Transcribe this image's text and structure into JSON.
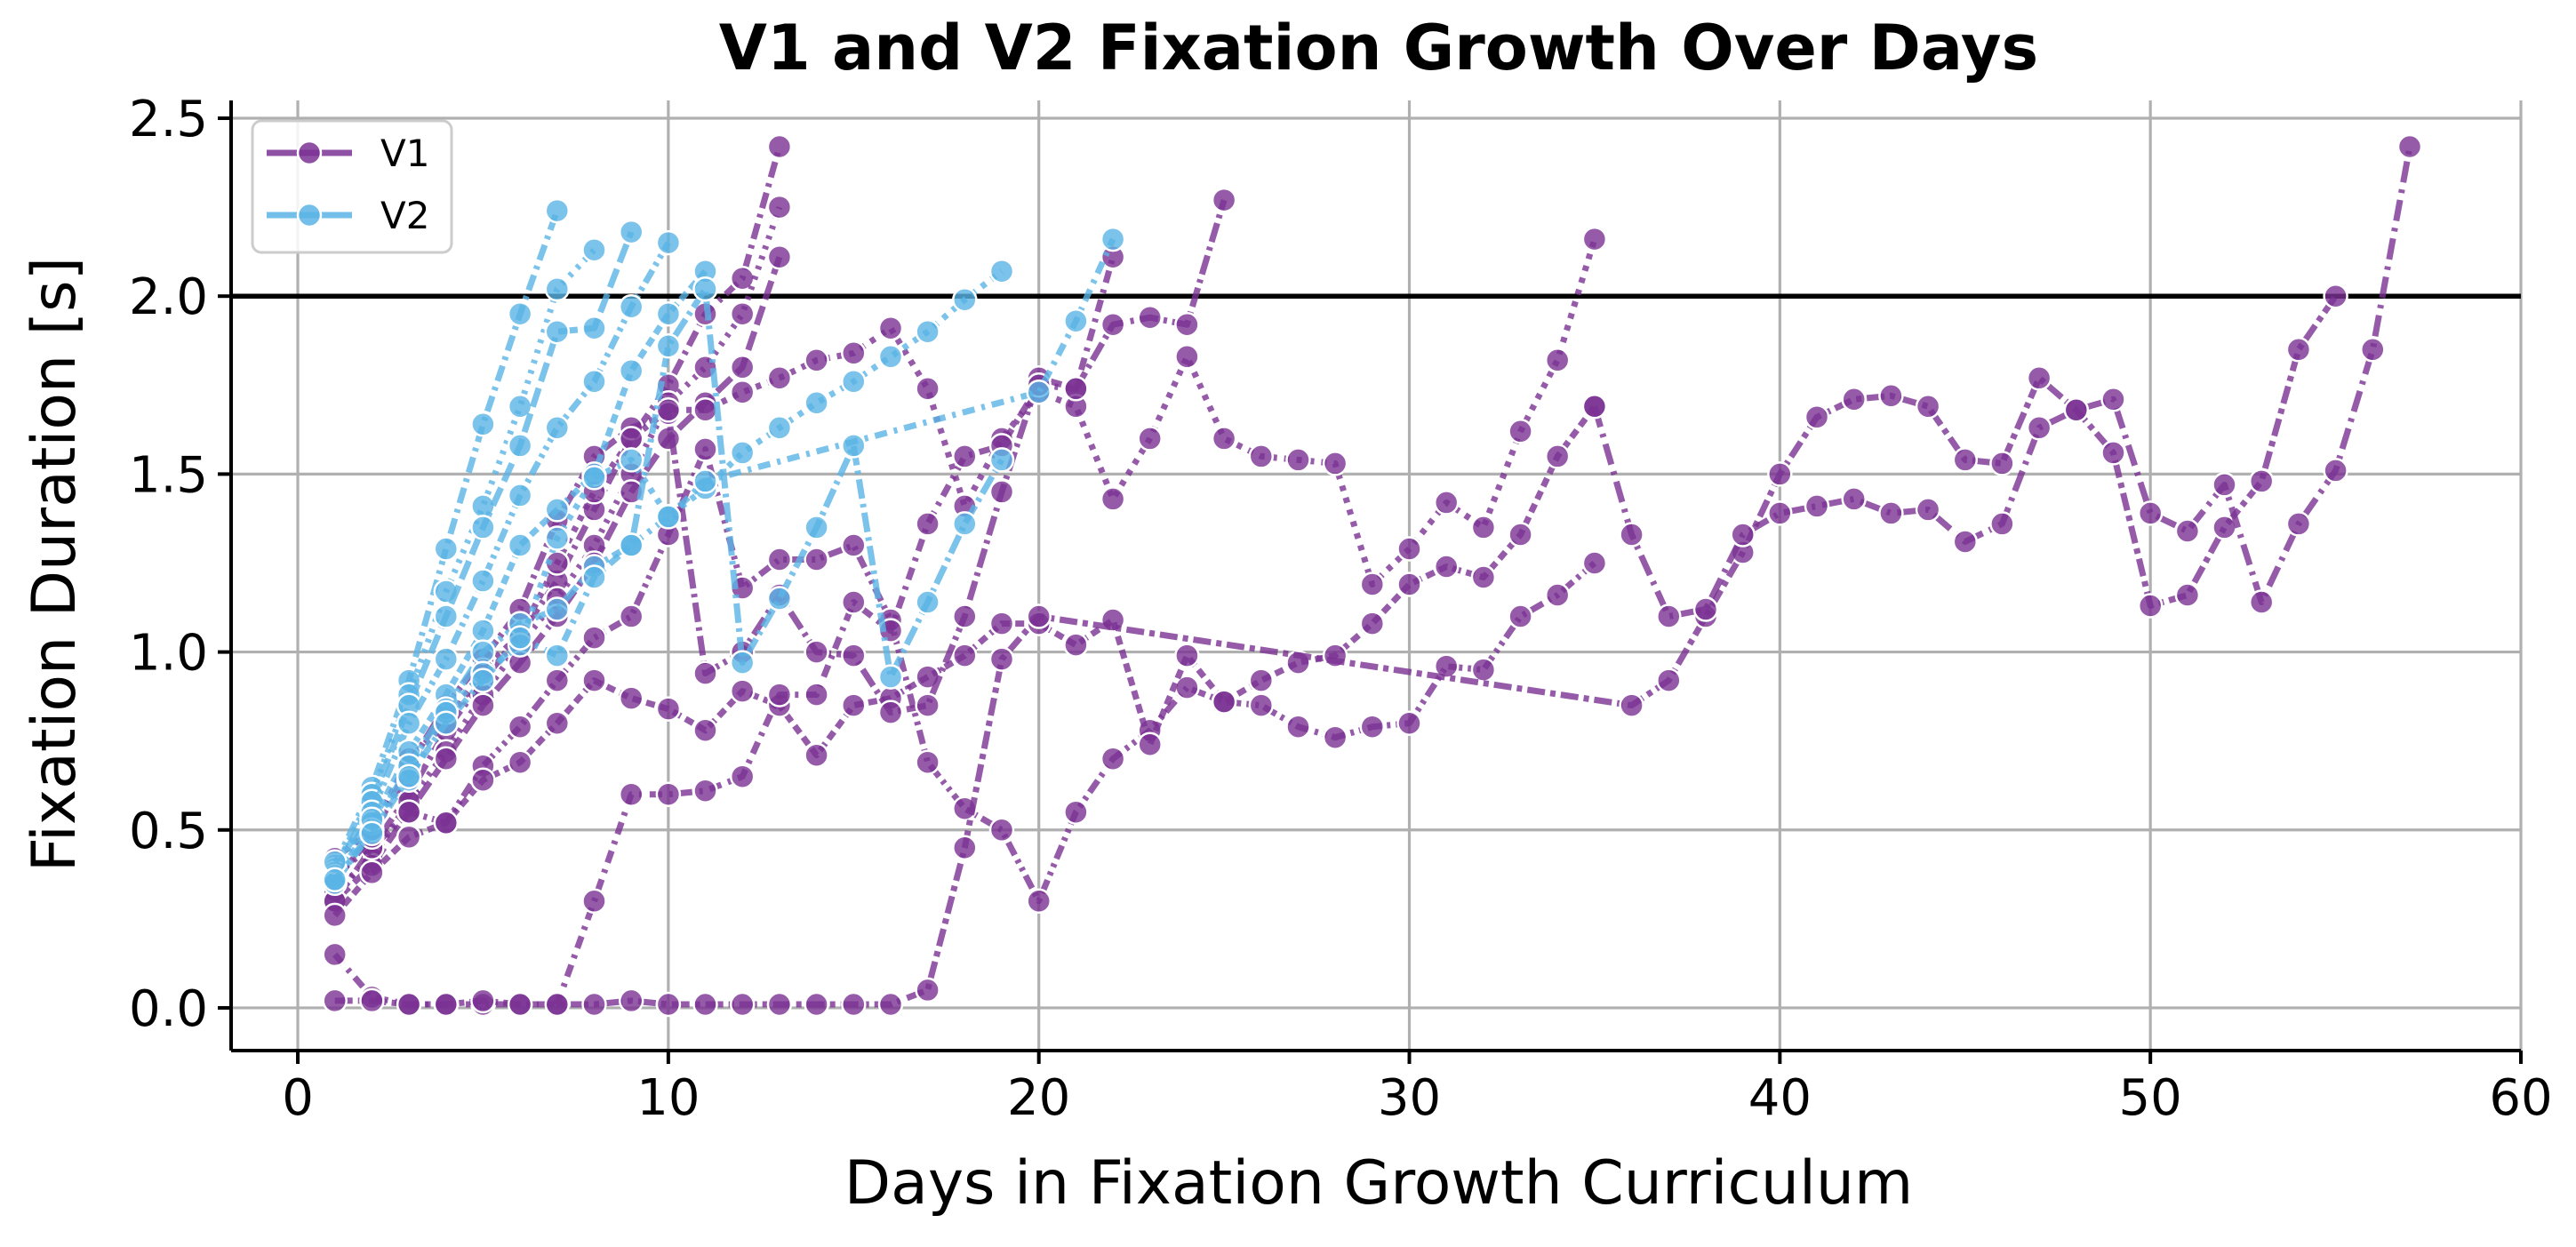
{
  "chart_data": {
    "type": "line",
    "title": "V1 and V2 Fixation Growth Over Days",
    "xlabel": "Days in Fixation Growth Curriculum",
    "ylabel": "Fixation Duration [s]",
    "xlim": [
      -1.8,
      60
    ],
    "ylim": [
      -0.12,
      2.55
    ],
    "xticks": [
      0,
      10,
      20,
      30,
      40,
      50,
      60
    ],
    "yticks": [
      0.0,
      0.5,
      1.0,
      1.5,
      2.0,
      2.5
    ],
    "xtick_labels": [
      "0",
      "10",
      "20",
      "30",
      "40",
      "50",
      "60"
    ],
    "ytick_labels": [
      "0.0",
      "0.5",
      "1.0",
      "1.5",
      "2.0",
      "2.5"
    ],
    "grid": true,
    "reference_line": {
      "y": 2.0,
      "color": "#000000"
    },
    "legend": {
      "position": "top-left",
      "entries": [
        {
          "label": "V1",
          "color": "#7b3294"
        },
        {
          "label": "V2",
          "color": "#5ab4e5"
        }
      ]
    },
    "series": [
      {
        "group": "V1",
        "color": "#7b3294",
        "x": [
          1,
          2,
          3,
          4,
          5,
          6,
          7,
          8,
          9,
          10,
          11,
          12,
          13
        ],
        "y": [
          0.38,
          0.45,
          0.6,
          0.78,
          0.92,
          1.05,
          1.2,
          1.4,
          1.6,
          1.75,
          1.95,
          2.05,
          2.42
        ]
      },
      {
        "group": "V1",
        "color": "#7b3294",
        "x": [
          1,
          2,
          3,
          4,
          5,
          6,
          7,
          8,
          9,
          10,
          11,
          12,
          13
        ],
        "y": [
          0.33,
          0.42,
          0.58,
          0.72,
          0.88,
          1.02,
          1.15,
          1.3,
          1.5,
          1.7,
          1.8,
          1.95,
          2.25
        ]
      },
      {
        "group": "V1",
        "color": "#7b3294",
        "x": [
          1,
          2,
          3,
          4,
          5,
          6,
          7,
          8,
          9,
          10,
          11,
          12,
          13
        ],
        "y": [
          0.3,
          0.4,
          0.55,
          0.7,
          0.85,
          0.97,
          1.1,
          1.25,
          1.45,
          1.6,
          1.7,
          1.8,
          2.11
        ]
      },
      {
        "group": "V1",
        "color": "#7b3294",
        "x": [
          1,
          2,
          3,
          4,
          5,
          6,
          7,
          8,
          9,
          10,
          11,
          12,
          13,
          14,
          15,
          16,
          17,
          18,
          19,
          20,
          21,
          22,
          23,
          24,
          25,
          26,
          27,
          28,
          29,
          30,
          31,
          32,
          33,
          34,
          35
        ],
        "y": [
          0.3,
          0.45,
          0.55,
          0.52,
          0.68,
          0.79,
          0.92,
          1.04,
          1.1,
          1.33,
          1.57,
          1.18,
          1.26,
          1.26,
          1.3,
          1.09,
          0.69,
          0.56,
          0.5,
          0.3,
          0.55,
          0.7,
          0.78,
          0.9,
          0.86,
          0.85,
          0.79,
          0.76,
          0.79,
          0.8,
          0.96,
          0.95,
          1.1,
          1.16,
          1.25
        ]
      },
      {
        "group": "V1",
        "color": "#7b3294",
        "x": [
          1,
          2,
          3,
          4,
          5,
          6,
          7,
          8,
          9,
          10,
          11,
          12,
          13,
          14,
          15,
          16,
          17,
          18,
          19,
          20,
          21,
          22,
          23,
          24,
          25,
          26,
          27,
          28,
          29,
          30,
          31,
          32,
          33,
          34,
          35
        ],
        "y": [
          0.26,
          0.38,
          0.48,
          0.52,
          0.64,
          0.69,
          0.8,
          0.92,
          0.87,
          0.84,
          0.78,
          0.89,
          0.85,
          0.71,
          0.85,
          0.87,
          0.93,
          0.99,
          1.08,
          1.08,
          1.02,
          1.09,
          0.74,
          0.99,
          0.86,
          0.92,
          0.97,
          0.99,
          1.08,
          1.19,
          1.24,
          1.21,
          1.33,
          1.55,
          1.69
        ]
      },
      {
        "group": "V1",
        "color": "#7b3294",
        "x": [
          1,
          2,
          3,
          4,
          5,
          6,
          7,
          8,
          9,
          10,
          11,
          12,
          13,
          14,
          15,
          16,
          17,
          18,
          19,
          20,
          21,
          22,
          23,
          24,
          25
        ],
        "y": [
          0.36,
          0.48,
          0.68,
          0.85,
          0.98,
          1.12,
          1.37,
          1.55,
          1.63,
          1.67,
          0.94,
          1.0,
          1.16,
          1.0,
          0.99,
          0.83,
          0.85,
          1.1,
          1.45,
          1.77,
          1.74,
          1.92,
          1.94,
          1.92,
          2.27
        ]
      },
      {
        "group": "V1",
        "color": "#7b3294",
        "x": [
          1,
          2,
          3,
          4,
          5,
          6,
          7,
          8,
          9,
          10,
          11,
          12,
          13,
          14,
          15,
          16,
          17,
          18,
          19,
          20,
          21,
          22,
          23,
          24,
          25,
          26,
          27,
          28,
          29,
          30,
          31,
          32,
          33,
          34,
          35
        ],
        "y": [
          0.42,
          0.5,
          0.7,
          0.8,
          0.95,
          1.05,
          1.25,
          1.45,
          1.6,
          1.68,
          1.68,
          1.73,
          1.77,
          1.82,
          1.84,
          1.91,
          1.74,
          1.41,
          1.6,
          1.73,
          1.69,
          1.43,
          1.6,
          1.83,
          1.6,
          1.55,
          1.54,
          1.53,
          1.19,
          1.29,
          1.42,
          1.35,
          1.62,
          1.82,
          2.16
        ]
      },
      {
        "group": "V1",
        "color": "#7b3294",
        "x": [
          1,
          2,
          3,
          4,
          5,
          6,
          7,
          8,
          9,
          10,
          11,
          12,
          13,
          14,
          15,
          16,
          17,
          18,
          19,
          20,
          21,
          22,
          23,
          24,
          25,
          26,
          27,
          28,
          29,
          30,
          31,
          32,
          33,
          34,
          35,
          36,
          37,
          38,
          39,
          40,
          41,
          42,
          43,
          44,
          45,
          46,
          47,
          48,
          49,
          50,
          51,
          52,
          53,
          54,
          55
        ],
        "y": [
          0.15,
          0.03,
          0.01,
          0.01,
          0.01,
          0.01,
          0.01,
          0.3,
          0.6,
          0.6,
          0.61,
          0.65,
          0.88,
          0.88,
          1.14,
          1.06,
          1.36,
          1.55,
          1.58,
          1.75,
          1.74,
          2.11,
          null,
          null,
          null,
          null,
          null,
          null,
          null,
          null,
          null,
          null,
          null,
          null,
          null,
          null,
          null,
          null,
          null,
          null,
          null,
          null,
          null,
          null,
          null,
          null,
          null,
          null,
          null,
          null,
          null,
          null,
          null,
          null,
          null
        ]
      },
      {
        "group": "V1",
        "color": "#7b3294",
        "x": [
          1,
          2,
          3,
          4,
          5,
          6,
          7,
          8,
          9,
          10,
          11,
          12,
          13,
          14,
          15,
          16,
          17,
          18,
          19,
          20,
          21,
          22,
          23,
          24,
          25,
          26,
          27,
          28,
          29,
          30,
          31,
          32,
          33,
          34,
          35,
          36,
          37,
          38,
          39,
          40,
          41,
          42,
          43,
          44,
          45,
          46,
          47,
          48,
          49,
          50,
          51,
          52,
          53,
          54,
          55,
          56,
          57
        ],
        "y": [
          0.02,
          0.02,
          0.01,
          0.01,
          0.02,
          0.01,
          0.01,
          0.01,
          0.02,
          0.01,
          0.01,
          0.01,
          0.01,
          0.01,
          0.01,
          0.01,
          0.05,
          0.45,
          0.98,
          1.1,
          null,
          null,
          null,
          null,
          null,
          null,
          null,
          null,
          null,
          null,
          null,
          null,
          null,
          null,
          null,
          0.85,
          0.92,
          1.1,
          1.28,
          1.5,
          1.66,
          1.71,
          1.72,
          1.69,
          1.54,
          1.53,
          1.77,
          1.68,
          1.56,
          1.13,
          1.16,
          1.35,
          1.48,
          1.85,
          2.0,
          null,
          null
        ]
      },
      {
        "group": "V1",
        "color": "#7b3294",
        "x": [
          35,
          36,
          37,
          38,
          39,
          40,
          41,
          42,
          43,
          44,
          45,
          46,
          47,
          48,
          49,
          50,
          51,
          52,
          53,
          54,
          55,
          56,
          57
        ],
        "y": [
          1.69,
          1.33,
          1.1,
          1.12,
          1.33,
          1.39,
          1.41,
          1.43,
          1.39,
          1.4,
          1.31,
          1.36,
          1.63,
          1.68,
          1.71,
          1.39,
          1.34,
          1.47,
          1.14,
          1.36,
          1.51,
          1.85,
          2.42
        ]
      },
      {
        "group": "V2",
        "color": "#5ab4e5",
        "x": [
          1,
          2,
          3,
          4,
          5,
          6,
          7
        ],
        "y": [
          0.4,
          0.62,
          0.92,
          1.29,
          1.64,
          1.95,
          2.24
        ]
      },
      {
        "group": "V2",
        "color": "#5ab4e5",
        "x": [
          1,
          2,
          3,
          4,
          5,
          6,
          7,
          8
        ],
        "y": [
          0.39,
          0.6,
          0.88,
          1.17,
          1.41,
          1.69,
          2.02,
          2.13
        ]
      },
      {
        "group": "V2",
        "color": "#5ab4e5",
        "x": [
          1,
          2,
          3,
          4,
          5,
          6,
          7,
          8,
          9
        ],
        "y": [
          0.38,
          0.58,
          0.85,
          1.1,
          1.35,
          1.58,
          1.9,
          1.91,
          2.18
        ]
      },
      {
        "group": "V2",
        "color": "#5ab4e5",
        "x": [
          1,
          2,
          3,
          4,
          5,
          6,
          7,
          8,
          9,
          10
        ],
        "y": [
          0.37,
          0.55,
          0.8,
          0.98,
          1.2,
          1.44,
          1.63,
          1.76,
          1.97,
          2.15
        ]
      },
      {
        "group": "V2",
        "color": "#5ab4e5",
        "x": [
          1,
          2,
          3,
          4,
          5,
          6,
          7,
          8,
          9,
          10,
          11
        ],
        "y": [
          0.36,
          0.52,
          0.72,
          0.88,
          1.06,
          1.3,
          1.4,
          1.5,
          1.79,
          1.95,
          2.07
        ]
      },
      {
        "group": "V2",
        "color": "#5ab4e5",
        "x": [
          1,
          2,
          3,
          4,
          5,
          6,
          7,
          8,
          9,
          10,
          11,
          12,
          13,
          14,
          15,
          16,
          17,
          18,
          19
        ],
        "y": [
          0.35,
          0.5,
          0.68,
          0.84,
          1.0,
          1.08,
          1.12,
          1.24,
          1.3,
          1.86,
          2.02,
          0.97,
          1.15,
          1.35,
          1.58,
          0.93,
          1.14,
          1.36,
          1.54
        ]
      },
      {
        "group": "V2",
        "color": "#5ab4e5",
        "x": [
          1,
          2,
          3,
          4,
          5,
          6,
          7,
          8,
          9,
          10,
          11,
          12,
          13,
          14,
          15,
          16,
          17,
          18,
          19
        ],
        "y": [
          0.41,
          0.53,
          0.64,
          0.83,
          0.94,
          1.02,
          1.32,
          1.49,
          1.54,
          1.38,
          1.46,
          1.56,
          1.63,
          1.7,
          1.76,
          1.83,
          1.9,
          1.99,
          2.07
        ]
      },
      {
        "group": "V2",
        "color": "#5ab4e5",
        "x": [
          1,
          2,
          3,
          4,
          5,
          6,
          7,
          8,
          9,
          10,
          11,
          12,
          13,
          14,
          15,
          16,
          17,
          18,
          19,
          20,
          21,
          22
        ],
        "y": [
          0.36,
          0.49,
          0.65,
          0.8,
          0.92,
          1.04,
          0.99,
          1.21,
          1.3,
          1.38,
          1.48,
          null,
          null,
          null,
          null,
          null,
          null,
          null,
          null,
          1.73,
          1.93,
          2.16
        ]
      }
    ]
  }
}
